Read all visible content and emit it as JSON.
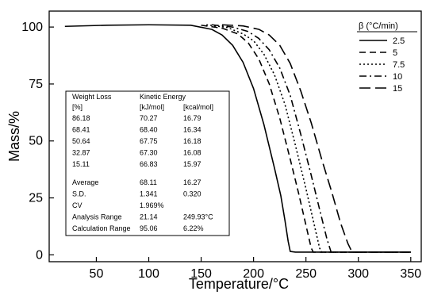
{
  "chart_data": {
    "type": "line",
    "xlabel": "Temperature/°C",
    "ylabel": "Mass/%",
    "xlim": [
      5,
      360
    ],
    "ylim": [
      -3,
      107
    ],
    "x_ticks": [
      "50",
      "100",
      "150",
      "200",
      "250",
      "300",
      "350"
    ],
    "y_ticks": [
      "0",
      "25",
      "50",
      "75",
      "100"
    ],
    "grid": false,
    "legend": {
      "title": "β (°C/min)",
      "placement": "top-right",
      "entries": [
        "2.5",
        "5",
        "7.5",
        "10",
        "15"
      ]
    },
    "series": [
      {
        "name": "2.5",
        "dash": "solid",
        "points": [
          [
            20,
            100.3
          ],
          [
            60,
            100.8
          ],
          [
            100,
            101
          ],
          [
            140,
            100.8
          ],
          [
            160,
            99
          ],
          [
            170,
            96.5
          ],
          [
            180,
            92
          ],
          [
            190,
            84.5
          ],
          [
            200,
            73
          ],
          [
            210,
            57
          ],
          [
            220,
            38
          ],
          [
            226,
            26
          ],
          [
            230,
            15
          ],
          [
            233,
            6
          ],
          [
            235,
            1.5
          ],
          [
            240,
            1.2
          ],
          [
            350,
            1.2
          ]
        ]
      },
      {
        "name": "5",
        "dash": "8,5",
        "points": [
          [
            150,
            100.8
          ],
          [
            170,
            99.5
          ],
          [
            185,
            97
          ],
          [
            195,
            93
          ],
          [
            205,
            86
          ],
          [
            215,
            75
          ],
          [
            225,
            60
          ],
          [
            235,
            42
          ],
          [
            243,
            27
          ],
          [
            250,
            13
          ],
          [
            255,
            3
          ],
          [
            257,
            1.2
          ],
          [
            265,
            1.2
          ],
          [
            350,
            1.2
          ]
        ]
      },
      {
        "name": "7.5",
        "dash": "2,3",
        "points": [
          [
            155,
            101
          ],
          [
            175,
            99.8
          ],
          [
            190,
            97
          ],
          [
            200,
            94
          ],
          [
            210,
            88
          ],
          [
            220,
            79
          ],
          [
            230,
            66
          ],
          [
            240,
            48
          ],
          [
            250,
            29
          ],
          [
            258,
            13
          ],
          [
            263,
            3
          ],
          [
            265,
            1.2
          ],
          [
            275,
            1.2
          ],
          [
            350,
            1.2
          ]
        ]
      },
      {
        "name": "10",
        "dash": "9,4,2,4",
        "points": [
          [
            160,
            101
          ],
          [
            180,
            100
          ],
          [
            195,
            98
          ],
          [
            205,
            95
          ],
          [
            215,
            90
          ],
          [
            225,
            82
          ],
          [
            235,
            70
          ],
          [
            245,
            53
          ],
          [
            255,
            35
          ],
          [
            263,
            20
          ],
          [
            270,
            7
          ],
          [
            274,
            1.2
          ],
          [
            285,
            1.2
          ],
          [
            350,
            1.2
          ]
        ]
      },
      {
        "name": "15",
        "dash": "14,6",
        "points": [
          [
            170,
            101
          ],
          [
            190,
            100.5
          ],
          [
            205,
            99
          ],
          [
            215,
            96.5
          ],
          [
            225,
            92
          ],
          [
            235,
            84
          ],
          [
            245,
            72
          ],
          [
            255,
            58
          ],
          [
            265,
            42
          ],
          [
            275,
            27
          ],
          [
            283,
            14
          ],
          [
            290,
            5
          ],
          [
            294,
            1.2
          ],
          [
            310,
            1.2
          ],
          [
            350,
            1.2
          ]
        ]
      }
    ],
    "annotation_table": {
      "headers": [
        "Weight Loss",
        "Kinetic Energy",
        ""
      ],
      "units": [
        "[%]",
        "[kJ/mol]",
        "[kcal/mol]"
      ],
      "rows": [
        [
          "86.18",
          "70.27",
          "16.79"
        ],
        [
          "68.41",
          "68.40",
          "16.34"
        ],
        [
          "50.64",
          "67.75",
          "16.18"
        ],
        [
          "32.87",
          "67.30",
          "16.08"
        ],
        [
          "15.11",
          "66.83",
          "15.97"
        ]
      ],
      "stats": [
        [
          "Average",
          "68.11",
          "16.27"
        ],
        [
          "S.D.",
          "1.341",
          "0.320"
        ],
        [
          "CV",
          "1.969%",
          ""
        ],
        [
          "Analysis Range",
          "21.14",
          "249.93°C"
        ],
        [
          "Calculation Range",
          "95.06",
          "6.22%"
        ]
      ]
    }
  }
}
